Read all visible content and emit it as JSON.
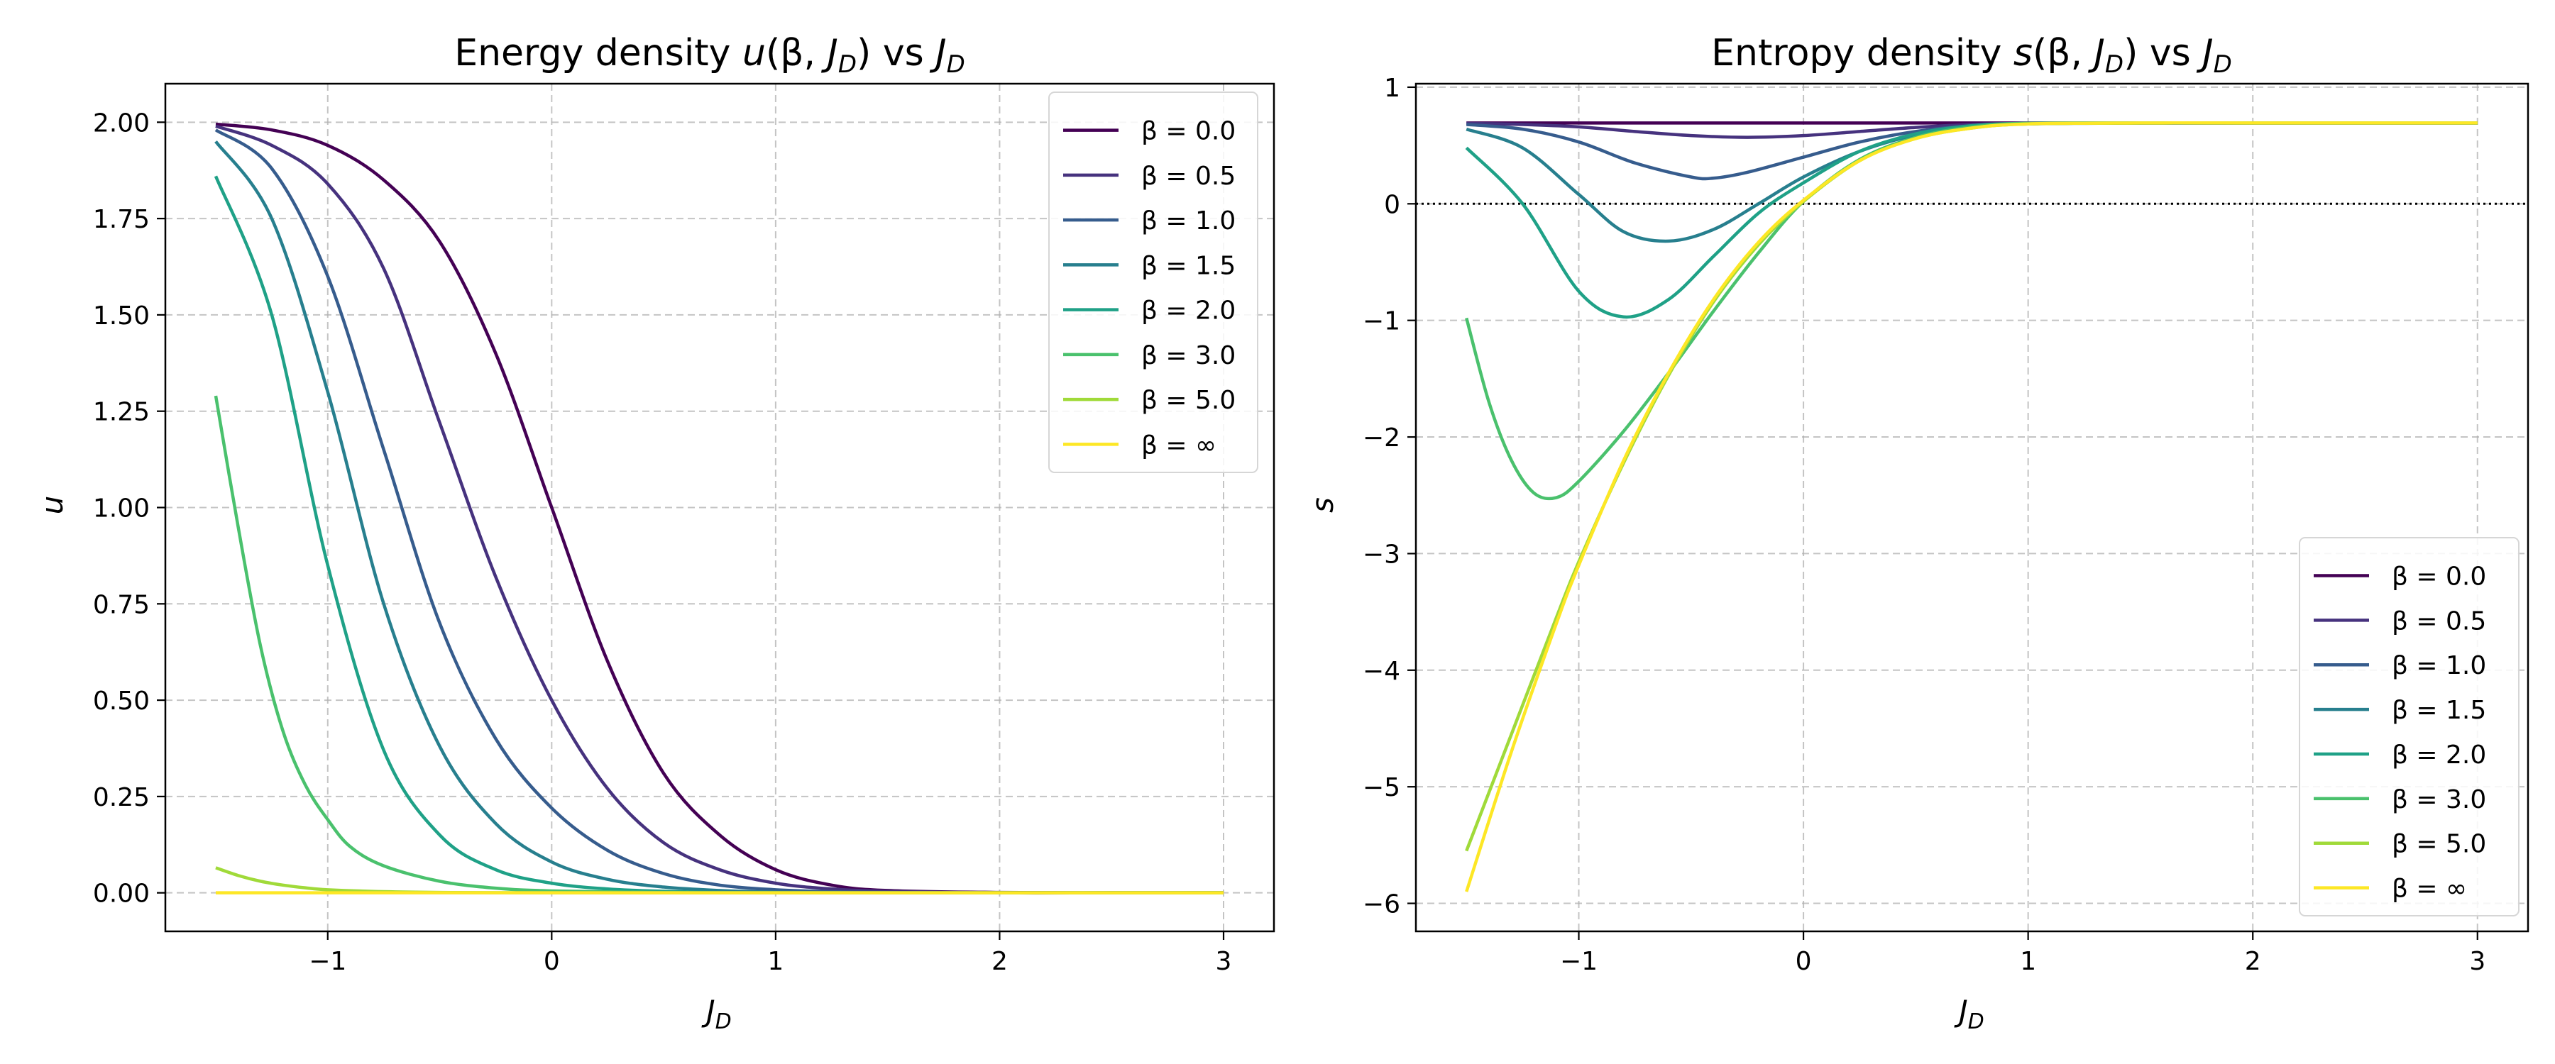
{
  "chart_data": [
    {
      "type": "line",
      "title": "Energy density u(β, J_D) vs J_D",
      "title_parts": {
        "a": "Energy density ",
        "b": "u",
        "c": "(β, ",
        "d": "J",
        "e": "D",
        "f": ") vs ",
        "g": "J",
        "h": "D"
      },
      "xlabel": "J_D",
      "xlabel_parts": {
        "main": "J",
        "sub": "D"
      },
      "ylabel": "u",
      "xlim": [
        -1.725,
        3.225
      ],
      "ylim": [
        -0.1,
        2.1
      ],
      "xticks": [
        -1,
        0,
        1,
        2,
        3
      ],
      "xtick_labels": [
        "−1",
        "0",
        "1",
        "2",
        "3"
      ],
      "yticks": [
        0.0,
        0.25,
        0.5,
        0.75,
        1.0,
        1.25,
        1.5,
        1.75,
        2.0
      ],
      "ytick_labels": [
        "0.00",
        "0.25",
        "0.50",
        "0.75",
        "1.00",
        "1.25",
        "1.50",
        "1.75",
        "2.00"
      ],
      "grid": true,
      "legend_position": "top-right",
      "x_range": [
        -1.5,
        3.0
      ],
      "series": [
        {
          "name": "β = 0.0",
          "label": "β = 0.0",
          "color": "#440154",
          "x": [
            -1.5,
            -1.25,
            -1.0,
            -0.75,
            -0.5,
            -0.25,
            0,
            0.25,
            0.5,
            0.75,
            1.0,
            1.25,
            1.5,
            2.0,
            2.5,
            3.0
          ],
          "y": [
            1.995,
            1.98,
            1.94,
            1.85,
            1.69,
            1.4,
            1.0,
            0.6,
            0.31,
            0.15,
            0.06,
            0.02,
            0.006,
            0.001,
            0.0,
            0.0
          ]
        },
        {
          "name": "β = 0.5",
          "label": "β = 0.5",
          "color": "#46327e",
          "x": [
            -1.5,
            -1.25,
            -1.0,
            -0.75,
            -0.5,
            -0.25,
            0,
            0.25,
            0.5,
            0.75,
            1.0,
            1.25,
            1.5,
            2.0,
            2.5,
            3.0
          ],
          "y": [
            1.99,
            1.94,
            1.84,
            1.62,
            1.22,
            0.82,
            0.5,
            0.27,
            0.13,
            0.06,
            0.025,
            0.01,
            0.004,
            0.0,
            0.0,
            0.0
          ]
        },
        {
          "name": "β = 1.0",
          "label": "β = 1.0",
          "color": "#365c8d",
          "x": [
            -1.5,
            -1.25,
            -1.0,
            -0.75,
            -0.5,
            -0.25,
            0,
            0.25,
            0.5,
            0.75,
            1.0,
            1.25,
            1.5,
            2.0,
            2.5,
            3.0
          ],
          "y": [
            1.98,
            1.88,
            1.6,
            1.15,
            0.7,
            0.4,
            0.22,
            0.11,
            0.05,
            0.02,
            0.008,
            0.003,
            0.001,
            0.0,
            0.0,
            0.0
          ]
        },
        {
          "name": "β = 1.5",
          "label": "β = 1.5",
          "color": "#277f8e",
          "x": [
            -1.5,
            -1.25,
            -1.0,
            -0.75,
            -0.5,
            -0.25,
            0,
            0.25,
            0.5,
            0.75,
            1.0,
            1.5,
            2.0,
            2.5,
            3.0
          ],
          "y": [
            1.95,
            1.75,
            1.3,
            0.75,
            0.38,
            0.18,
            0.08,
            0.035,
            0.015,
            0.006,
            0.002,
            0.0,
            0.0,
            0.0,
            0.0
          ]
        },
        {
          "name": "β = 2.0",
          "label": "β = 2.0",
          "color": "#1fa187",
          "x": [
            -1.5,
            -1.25,
            -1.0,
            -0.75,
            -0.5,
            -0.25,
            0,
            0.25,
            0.5,
            0.75,
            1.0,
            1.5,
            2.0,
            2.5,
            3.0
          ],
          "y": [
            1.86,
            1.5,
            0.85,
            0.37,
            0.15,
            0.06,
            0.025,
            0.01,
            0.004,
            0.001,
            0.0,
            0.0,
            0.0,
            0.0,
            0.0
          ]
        },
        {
          "name": "β = 3.0",
          "label": "β = 3.0",
          "color": "#4ac16d",
          "x": [
            -1.5,
            -1.4,
            -1.3,
            -1.2,
            -1.1,
            -1.0,
            -0.9,
            -0.75,
            -0.5,
            -0.25,
            0,
            0.5,
            1.0,
            2.0,
            3.0
          ],
          "y": [
            1.29,
            0.95,
            0.64,
            0.42,
            0.28,
            0.19,
            0.12,
            0.07,
            0.03,
            0.012,
            0.005,
            0.001,
            0.0,
            0.0,
            0.0
          ]
        },
        {
          "name": "β = 5.0",
          "label": "β = 5.0",
          "color": "#a0da39",
          "x": [
            -1.5,
            -1.4,
            -1.3,
            -1.2,
            -1.1,
            -1.0,
            -0.75,
            -0.5,
            0,
            1.0,
            2.0,
            3.0
          ],
          "y": [
            0.065,
            0.045,
            0.03,
            0.02,
            0.013,
            0.008,
            0.003,
            0.001,
            0.0,
            0.0,
            0.0,
            0.0
          ]
        },
        {
          "name": "β = ∞",
          "label": "β = ∞",
          "color": "#fde725",
          "x": [
            -1.5,
            -1.0,
            0,
            1.0,
            2.0,
            3.0
          ],
          "y": [
            0.0,
            0.0,
            0.0,
            0.0,
            0.0,
            0.0
          ]
        }
      ]
    },
    {
      "type": "line",
      "title": "Entropy density s(β, J_D) vs J_D",
      "title_parts": {
        "a": "Entropy density ",
        "b": "s",
        "c": "(β, ",
        "d": "J",
        "e": "D",
        "f": ") vs ",
        "g": "J",
        "h": "D"
      },
      "xlabel": "J_D",
      "xlabel_parts": {
        "main": "J",
        "sub": "D"
      },
      "ylabel": "s",
      "xlim": [
        -1.725,
        3.225
      ],
      "ylim": [
        -6.24,
        1.03
      ],
      "xticks": [
        -1,
        0,
        1,
        2,
        3
      ],
      "xtick_labels": [
        "−1",
        "0",
        "1",
        "2",
        "3"
      ],
      "yticks": [
        -6,
        -5,
        -4,
        -3,
        -2,
        -1,
        0,
        1
      ],
      "ytick_labels": [
        "−6",
        "−5",
        "−4",
        "−3",
        "−2",
        "−1",
        "0",
        "1"
      ],
      "grid": true,
      "reference_line": {
        "y": 0,
        "style": "dotted"
      },
      "legend_position": "lower-right",
      "series": [
        {
          "name": "β = 0.0",
          "label": "β = 0.0",
          "color": "#440154",
          "x": [
            -1.5,
            -1.0,
            0,
            1.0,
            2.0,
            3.0
          ],
          "y": [
            0.693,
            0.693,
            0.693,
            0.693,
            0.693,
            0.693
          ]
        },
        {
          "name": "β = 0.5",
          "label": "β = 0.5",
          "color": "#46327e",
          "x": [
            -1.5,
            -1.25,
            -1.0,
            -0.75,
            -0.5,
            -0.25,
            0,
            0.25,
            0.5,
            0.75,
            1.0,
            1.5,
            2.0,
            3.0
          ],
          "y": [
            0.69,
            0.68,
            0.66,
            0.62,
            0.585,
            0.57,
            0.585,
            0.62,
            0.655,
            0.68,
            0.69,
            0.693,
            0.693,
            0.693
          ]
        },
        {
          "name": "β = 1.0",
          "label": "β = 1.0",
          "color": "#365c8d",
          "x": [
            -1.5,
            -1.25,
            -1.0,
            -0.75,
            -0.5,
            -0.4,
            -0.25,
            0,
            0.25,
            0.5,
            0.75,
            1.0,
            1.5,
            2.0,
            3.0
          ],
          "y": [
            0.68,
            0.64,
            0.53,
            0.35,
            0.23,
            0.22,
            0.27,
            0.4,
            0.53,
            0.62,
            0.67,
            0.69,
            0.693,
            0.693,
            0.693
          ]
        },
        {
          "name": "β = 1.5",
          "label": "β = 1.5",
          "color": "#277f8e",
          "x": [
            -1.5,
            -1.25,
            -1.0,
            -0.8,
            -0.6,
            -0.4,
            -0.2,
            0,
            0.25,
            0.5,
            0.75,
            1.0,
            1.5,
            2.0,
            3.0
          ],
          "y": [
            0.64,
            0.48,
            0.08,
            -0.24,
            -0.32,
            -0.22,
            0.0,
            0.23,
            0.45,
            0.59,
            0.66,
            0.685,
            0.693,
            0.693,
            0.693
          ]
        },
        {
          "name": "β = 2.0",
          "label": "β = 2.0",
          "color": "#1fa187",
          "x": [
            -1.5,
            -1.25,
            -1.0,
            -0.8,
            -0.6,
            -0.4,
            -0.2,
            0,
            0.25,
            0.5,
            0.75,
            1.0,
            1.5,
            2.0,
            3.0
          ],
          "y": [
            0.48,
            0.0,
            -0.75,
            -0.97,
            -0.82,
            -0.45,
            -0.08,
            0.18,
            0.45,
            0.6,
            0.67,
            0.69,
            0.693,
            0.693,
            0.693
          ]
        },
        {
          "name": "β = 3.0",
          "label": "β = 3.0",
          "color": "#4ac16d",
          "x": [
            -1.5,
            -1.4,
            -1.3,
            -1.2,
            -1.1,
            -1.0,
            -0.8,
            -0.6,
            -0.4,
            -0.2,
            0,
            0.25,
            0.5,
            0.75,
            1.0,
            1.5,
            2.0,
            3.0
          ],
          "y": [
            -0.98,
            -1.7,
            -2.2,
            -2.48,
            -2.52,
            -2.38,
            -1.95,
            -1.45,
            -0.92,
            -0.42,
            0.02,
            0.38,
            0.57,
            0.66,
            0.69,
            0.693,
            0.693,
            0.693
          ]
        },
        {
          "name": "β = 5.0",
          "label": "β = 5.0",
          "color": "#a0da39",
          "x": [
            -1.5,
            -1.3,
            -1.1,
            -1.0,
            -0.8,
            -0.6,
            -0.4,
            -0.2,
            0,
            0.25,
            0.5,
            0.75,
            1.0,
            1.5,
            2.0,
            3.0
          ],
          "y": [
            -5.55,
            -4.55,
            -3.55,
            -3.07,
            -2.22,
            -1.47,
            -0.84,
            -0.35,
            0.02,
            0.37,
            0.56,
            0.65,
            0.685,
            0.693,
            0.693,
            0.693
          ]
        },
        {
          "name": "β = ∞",
          "label": "β = ∞",
          "color": "#fde725",
          "x": [
            -1.5,
            -1.3,
            -1.1,
            -1.0,
            -0.8,
            -0.6,
            -0.4,
            -0.2,
            0,
            0.25,
            0.5,
            0.75,
            1.0,
            1.5,
            2.0,
            3.0
          ],
          "y": [
            -5.9,
            -4.7,
            -3.6,
            -3.1,
            -2.2,
            -1.45,
            -0.82,
            -0.33,
            0.03,
            0.37,
            0.56,
            0.65,
            0.685,
            0.693,
            0.693,
            0.693
          ]
        }
      ]
    }
  ]
}
